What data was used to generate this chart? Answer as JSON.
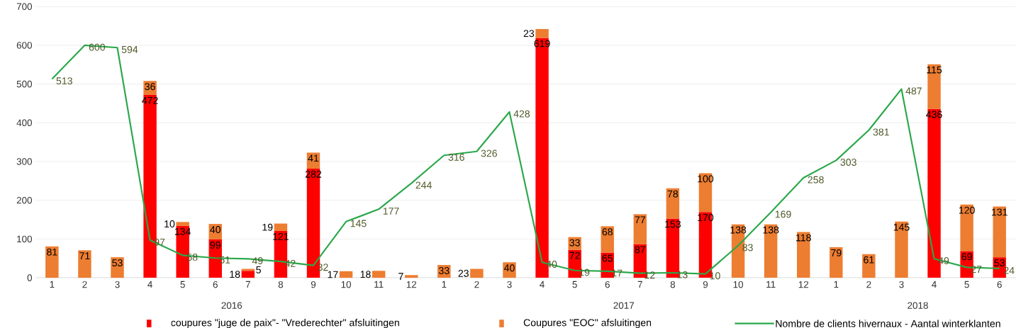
{
  "chart_data": {
    "type": "bar",
    "stacked": true,
    "data_labels": true,
    "grid": "y",
    "legend": "bottom",
    "categories": [
      "1",
      "2",
      "3",
      "4",
      "5",
      "6",
      "7",
      "8",
      "9",
      "10",
      "11",
      "12",
      "1",
      "2",
      "3",
      "4",
      "5",
      "6",
      "7",
      "8",
      "9",
      "10",
      "11",
      "12",
      "1",
      "2",
      "3",
      "4",
      "5",
      "6"
    ],
    "annotations": [
      "2016",
      "2017",
      "2018"
    ],
    "ylim": [
      0,
      700
    ],
    "yticks": [
      0,
      100,
      200,
      300,
      400,
      500,
      600,
      700
    ],
    "series": [
      {
        "name": "coupures \"juge de paix\"-  \"Vrederechter\" afsluitingen",
        "color": "#ff0000",
        "values": [
          null,
          null,
          null,
          472,
          134,
          99,
          18,
          121,
          282,
          null,
          null,
          null,
          null,
          null,
          null,
          619,
          72,
          65,
          87,
          153,
          170,
          null,
          null,
          null,
          null,
          null,
          null,
          436,
          69,
          53
        ]
      },
      {
        "name": "Coupures \"EOC\" afsluitingen",
        "color": "#ed7d31",
        "values": [
          81,
          71,
          53,
          36,
          10,
          40,
          5,
          19,
          41,
          17,
          18,
          7,
          33,
          23,
          40,
          23,
          33,
          68,
          77,
          78,
          100,
          138,
          138,
          118,
          79,
          61,
          145,
          115,
          120,
          131
        ]
      },
      {
        "name": "Nombre de clients hivernaux - Aantal  winterklanten",
        "type": "line",
        "color": "#2aa84a",
        "values": [
          513,
          600,
          594,
          97,
          58,
          51,
          49,
          42,
          32,
          145,
          177,
          244,
          316,
          326,
          428,
          40,
          19,
          17,
          12,
          13,
          10,
          83,
          169,
          258,
          303,
          381,
          487,
          49,
          27,
          24
        ]
      }
    ]
  }
}
